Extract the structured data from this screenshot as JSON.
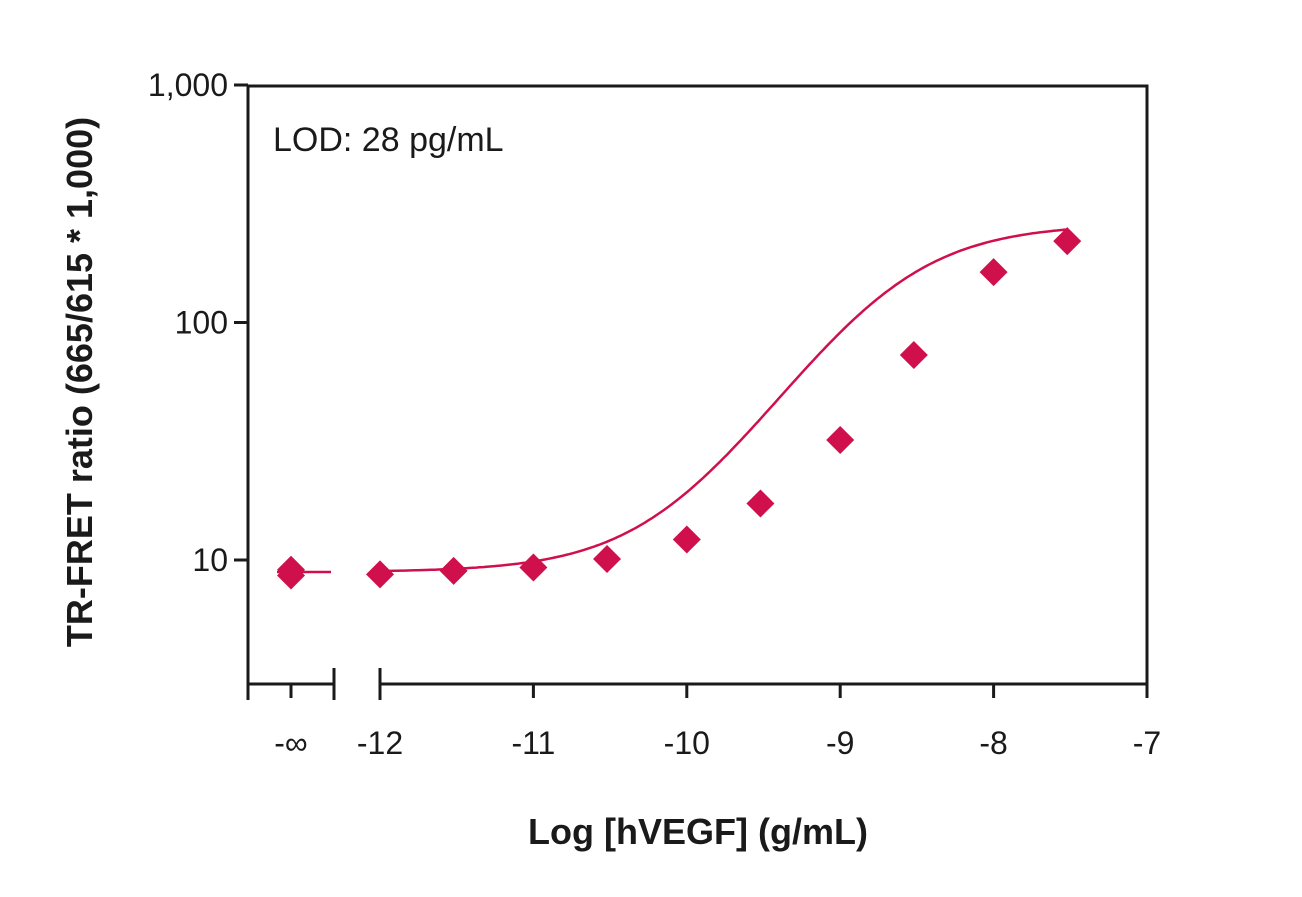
{
  "chart_data": {
    "type": "scatter",
    "xlabel": "Log [hVEGF] (g/mL)",
    "ylabel": "TR-FRET ratio (665/615 * 1,000)",
    "annotation": "LOD: 28 pg/mL",
    "y_scale": "log",
    "ylim": [
      3.6,
      1000
    ],
    "xlim": [
      -12.0,
      -7.0
    ],
    "y_ticks": [
      {
        "value": 10,
        "label": "10"
      },
      {
        "value": 100,
        "label": "100"
      },
      {
        "value": 1000,
        "label": "1,000"
      }
    ],
    "x_ticks": [
      {
        "value": -12,
        "label": "-12"
      },
      {
        "value": -11,
        "label": "-11"
      },
      {
        "value": -10,
        "label": "-10"
      },
      {
        "value": -9,
        "label": "-9"
      },
      {
        "value": -8,
        "label": "-8"
      },
      {
        "value": -7,
        "label": "-7"
      }
    ],
    "blank": {
      "label": "-∞",
      "points": [
        9.1,
        8.6
      ],
      "curve_level": 8.9
    },
    "points": [
      {
        "x": -12.0,
        "y": 8.7
      },
      {
        "x": -11.52,
        "y": 9.0
      },
      {
        "x": -11.0,
        "y": 9.3
      },
      {
        "x": -10.52,
        "y": 10.1
      },
      {
        "x": -10.0,
        "y": 12.2
      },
      {
        "x": -9.52,
        "y": 17.3
      },
      {
        "x": -9.0,
        "y": 32.0
      },
      {
        "x": -8.52,
        "y": 73.0
      },
      {
        "x": -8.0,
        "y": 163.0
      },
      {
        "x": -7.52,
        "y": 220.0
      }
    ],
    "fit": {
      "model": "4PL",
      "bottom": 8.9,
      "top": 260.0,
      "log_ec50": -8.7,
      "hill": 1.05
    },
    "colors": {
      "series": "#d0104c",
      "axis": "#1a1a1a"
    }
  }
}
